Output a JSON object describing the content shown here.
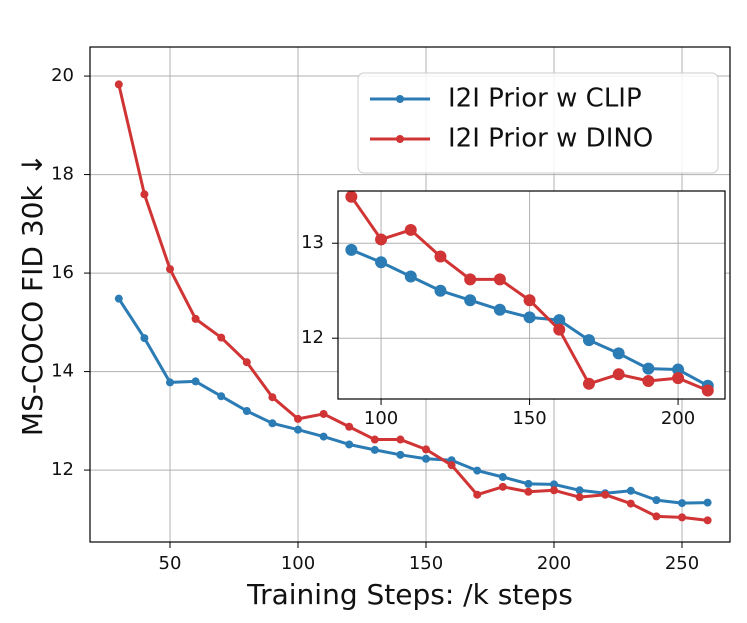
{
  "chart_data": [
    {
      "type": "line",
      "x_label": "Training Steps: /k steps",
      "y_label": "MS-COCO FID 30k ↓",
      "x": [
        30,
        40,
        50,
        60,
        70,
        80,
        90,
        100,
        110,
        120,
        130,
        140,
        150,
        160,
        170,
        180,
        190,
        200,
        210,
        220,
        230,
        240,
        250,
        260
      ],
      "series": [
        {
          "name": "I2I Prior w CLIP",
          "color": "#2b7bb4",
          "values": [
            15.48,
            14.68,
            13.78,
            13.8,
            13.5,
            13.2,
            12.95,
            12.82,
            12.68,
            12.52,
            12.41,
            12.31,
            12.23,
            12.2,
            11.99,
            11.86,
            11.72,
            11.71,
            11.59,
            11.53,
            11.58,
            11.39,
            11.33,
            11.34
          ]
        },
        {
          "name": "I2I Prior w DINO",
          "color": "#d03434",
          "values": [
            19.83,
            17.6,
            16.08,
            15.07,
            14.69,
            14.19,
            13.48,
            13.04,
            13.14,
            12.88,
            12.62,
            12.62,
            12.42,
            12.1,
            11.5,
            11.66,
            11.56,
            11.59,
            11.45,
            11.5,
            11.32,
            11.06,
            11.04,
            10.98
          ]
        }
      ],
      "xlim": [
        18.75,
        268.75
      ],
      "ylim": [
        10.54,
        20.59
      ],
      "xticks": [
        50,
        100,
        150,
        200,
        250
      ],
      "yticks": [
        12,
        14,
        16,
        18,
        20
      ],
      "grid": true,
      "legend": "upper right"
    },
    {
      "type": "line",
      "x": [
        90,
        100,
        110,
        120,
        130,
        140,
        150,
        160,
        170,
        180,
        190,
        200,
        210
      ],
      "series": [
        {
          "color": "#2b7bb4",
          "values": [
            12.93,
            12.8,
            12.65,
            12.5,
            12.4,
            12.3,
            12.22,
            12.19,
            11.98,
            11.84,
            11.68,
            11.67,
            11.5
          ]
        },
        {
          "color": "#d03434",
          "values": [
            13.49,
            13.04,
            13.14,
            12.86,
            12.62,
            12.62,
            12.4,
            12.09,
            11.52,
            11.62,
            11.55,
            11.58,
            11.45
          ]
        }
      ],
      "xlim": [
        85.5,
        215.8
      ],
      "ylim": [
        11.36,
        13.55
      ],
      "xticks": [
        100,
        150,
        200
      ],
      "yticks": [
        12,
        13
      ],
      "grid": true
    }
  ]
}
